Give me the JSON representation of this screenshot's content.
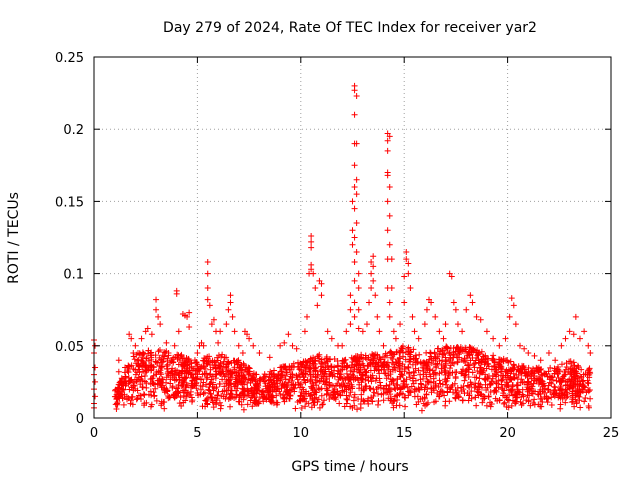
{
  "chart_data": {
    "type": "scatter",
    "title": "Day 279 of 2024, Rate Of TEC Index for receiver yar2",
    "xlabel": "GPS time / hours",
    "ylabel": "ROTI / TECUs",
    "xlim": [
      0,
      25
    ],
    "ylim": [
      0,
      0.25
    ],
    "xticks": [
      0,
      5,
      10,
      15,
      20,
      25
    ],
    "xtick_labels": [
      "0",
      "5",
      "10",
      "15",
      "20",
      "25"
    ],
    "yticks": [
      0,
      0.05,
      0.1,
      0.15,
      0.2,
      0.25
    ],
    "ytick_labels": [
      "0",
      "0.05",
      "0.1",
      "0.15",
      "0.2",
      "0.25"
    ],
    "grid": true,
    "marker": "+",
    "color": "#ff0000",
    "series": [
      {
        "name": "ROTI",
        "points": [
          [
            0.0,
            0.054
          ],
          [
            0.0,
            0.045
          ],
          [
            0.0,
            0.03
          ],
          [
            0.0,
            0.02
          ],
          [
            0.0,
            0.01
          ],
          [
            0.0,
            0.007
          ],
          [
            0.05,
            0.05
          ],
          [
            0.05,
            0.035
          ],
          [
            0.05,
            0.025
          ],
          [
            0.05,
            0.015
          ],
          [
            1.2,
            0.04
          ],
          [
            1.2,
            0.032
          ],
          [
            1.3,
            0.025
          ],
          [
            1.4,
            0.02
          ],
          [
            1.5,
            0.035
          ],
          [
            1.7,
            0.058
          ],
          [
            1.8,
            0.055
          ],
          [
            1.9,
            0.045
          ],
          [
            2.0,
            0.05
          ],
          [
            2.3,
            0.055
          ],
          [
            2.5,
            0.06
          ],
          [
            2.6,
            0.062
          ],
          [
            2.8,
            0.058
          ],
          [
            3.0,
            0.082
          ],
          [
            3.0,
            0.075
          ],
          [
            3.1,
            0.07
          ],
          [
            3.2,
            0.065
          ],
          [
            3.5,
            0.052
          ],
          [
            3.6,
            0.045
          ],
          [
            3.9,
            0.05
          ],
          [
            4.0,
            0.088
          ],
          [
            4.0,
            0.086
          ],
          [
            4.1,
            0.06
          ],
          [
            4.3,
            0.072
          ],
          [
            4.4,
            0.071
          ],
          [
            4.5,
            0.07
          ],
          [
            4.6,
            0.073
          ],
          [
            4.6,
            0.063
          ],
          [
            5.0,
            0.045
          ],
          [
            5.1,
            0.05
          ],
          [
            5.2,
            0.052
          ],
          [
            5.3,
            0.05
          ],
          [
            5.5,
            0.108
          ],
          [
            5.5,
            0.1
          ],
          [
            5.5,
            0.09
          ],
          [
            5.5,
            0.082
          ],
          [
            5.6,
            0.078
          ],
          [
            5.7,
            0.065
          ],
          [
            5.8,
            0.068
          ],
          [
            5.9,
            0.06
          ],
          [
            6.0,
            0.052
          ],
          [
            6.1,
            0.06
          ],
          [
            6.4,
            0.065
          ],
          [
            6.5,
            0.075
          ],
          [
            6.6,
            0.08
          ],
          [
            6.6,
            0.085
          ],
          [
            6.7,
            0.07
          ],
          [
            6.8,
            0.06
          ],
          [
            7.0,
            0.05
          ],
          [
            7.2,
            0.045
          ],
          [
            7.3,
            0.06
          ],
          [
            7.4,
            0.058
          ],
          [
            7.5,
            0.055
          ],
          [
            7.7,
            0.05
          ],
          [
            8.0,
            0.045
          ],
          [
            8.5,
            0.042
          ],
          [
            9.0,
            0.05
          ],
          [
            9.2,
            0.052
          ],
          [
            9.4,
            0.058
          ],
          [
            9.6,
            0.05
          ],
          [
            9.8,
            0.048
          ],
          [
            10.2,
            0.06
          ],
          [
            10.3,
            0.07
          ],
          [
            10.4,
            0.1
          ],
          [
            10.5,
            0.126
          ],
          [
            10.5,
            0.122
          ],
          [
            10.5,
            0.118
          ],
          [
            10.5,
            0.106
          ],
          [
            10.5,
            0.103
          ],
          [
            10.6,
            0.1
          ],
          [
            10.7,
            0.09
          ],
          [
            10.8,
            0.078
          ],
          [
            10.9,
            0.095
          ],
          [
            11.0,
            0.093
          ],
          [
            11.0,
            0.085
          ],
          [
            11.3,
            0.06
          ],
          [
            11.5,
            0.055
          ],
          [
            11.8,
            0.05
          ],
          [
            12.0,
            0.05
          ],
          [
            12.2,
            0.06
          ],
          [
            12.4,
            0.065
          ],
          [
            12.4,
            0.075
          ],
          [
            12.4,
            0.085
          ],
          [
            12.5,
            0.15
          ],
          [
            12.5,
            0.13
          ],
          [
            12.5,
            0.12
          ],
          [
            12.6,
            0.23
          ],
          [
            12.6,
            0.227
          ],
          [
            12.6,
            0.21
          ],
          [
            12.6,
            0.19
          ],
          [
            12.6,
            0.175
          ],
          [
            12.6,
            0.16
          ],
          [
            12.6,
            0.145
          ],
          [
            12.6,
            0.125
          ],
          [
            12.6,
            0.108
          ],
          [
            12.6,
            0.095
          ],
          [
            12.6,
            0.08
          ],
          [
            12.6,
            0.07
          ],
          [
            12.7,
            0.223
          ],
          [
            12.7,
            0.19
          ],
          [
            12.7,
            0.165
          ],
          [
            12.7,
            0.155
          ],
          [
            12.7,
            0.135
          ],
          [
            12.7,
            0.115
          ],
          [
            12.8,
            0.1
          ],
          [
            12.8,
            0.09
          ],
          [
            12.8,
            0.075
          ],
          [
            12.8,
            0.062
          ],
          [
            13.0,
            0.06
          ],
          [
            13.2,
            0.065
          ],
          [
            13.3,
            0.08
          ],
          [
            13.4,
            0.09
          ],
          [
            13.4,
            0.1
          ],
          [
            13.4,
            0.108
          ],
          [
            13.5,
            0.112
          ],
          [
            13.5,
            0.105
          ],
          [
            13.5,
            0.095
          ],
          [
            13.6,
            0.085
          ],
          [
            13.7,
            0.07
          ],
          [
            13.8,
            0.06
          ],
          [
            14.0,
            0.05
          ],
          [
            14.2,
            0.197
          ],
          [
            14.2,
            0.192
          ],
          [
            14.2,
            0.185
          ],
          [
            14.2,
            0.17
          ],
          [
            14.2,
            0.168
          ],
          [
            14.2,
            0.15
          ],
          [
            14.2,
            0.13
          ],
          [
            14.2,
            0.11
          ],
          [
            14.2,
            0.09
          ],
          [
            14.3,
            0.195
          ],
          [
            14.3,
            0.16
          ],
          [
            14.3,
            0.14
          ],
          [
            14.3,
            0.12
          ],
          [
            14.3,
            0.08
          ],
          [
            14.3,
            0.07
          ],
          [
            14.4,
            0.11
          ],
          [
            14.4,
            0.09
          ],
          [
            14.5,
            0.06
          ],
          [
            14.6,
            0.055
          ],
          [
            14.8,
            0.065
          ],
          [
            15.0,
            0.098
          ],
          [
            15.0,
            0.08
          ],
          [
            15.1,
            0.115
          ],
          [
            15.1,
            0.11
          ],
          [
            15.2,
            0.107
          ],
          [
            15.2,
            0.1
          ],
          [
            15.3,
            0.09
          ],
          [
            15.4,
            0.07
          ],
          [
            15.5,
            0.06
          ],
          [
            15.7,
            0.055
          ],
          [
            16.0,
            0.065
          ],
          [
            16.1,
            0.075
          ],
          [
            16.2,
            0.082
          ],
          [
            16.3,
            0.08
          ],
          [
            16.5,
            0.07
          ],
          [
            16.7,
            0.06
          ],
          [
            16.9,
            0.055
          ],
          [
            17.0,
            0.065
          ],
          [
            17.2,
            0.1
          ],
          [
            17.3,
            0.098
          ],
          [
            17.4,
            0.08
          ],
          [
            17.5,
            0.075
          ],
          [
            17.6,
            0.065
          ],
          [
            17.8,
            0.06
          ],
          [
            18.0,
            0.075
          ],
          [
            18.2,
            0.085
          ],
          [
            18.3,
            0.08
          ],
          [
            18.5,
            0.07
          ],
          [
            18.7,
            0.068
          ],
          [
            19.0,
            0.06
          ],
          [
            19.3,
            0.055
          ],
          [
            19.6,
            0.05
          ],
          [
            19.9,
            0.055
          ],
          [
            20.1,
            0.07
          ],
          [
            20.2,
            0.083
          ],
          [
            20.3,
            0.078
          ],
          [
            20.4,
            0.065
          ],
          [
            20.6,
            0.05
          ],
          [
            20.8,
            0.048
          ],
          [
            21.0,
            0.045
          ],
          [
            21.3,
            0.043
          ],
          [
            21.6,
            0.04
          ],
          [
            22.0,
            0.045
          ],
          [
            22.3,
            0.04
          ],
          [
            22.6,
            0.05
          ],
          [
            22.8,
            0.055
          ],
          [
            23.0,
            0.06
          ],
          [
            23.2,
            0.058
          ],
          [
            23.3,
            0.07
          ],
          [
            23.5,
            0.055
          ],
          [
            23.7,
            0.06
          ],
          [
            23.9,
            0.05
          ],
          [
            24.0,
            0.045
          ]
        ],
        "band": {
          "description": "dense cluster of low ROTI values across the day",
          "x": [
            1.0,
            24.0
          ],
          "baseline_min": 0.005,
          "profile_x": [
            1.0,
            2.0,
            3.0,
            4.0,
            5.0,
            6.0,
            7.0,
            8.0,
            9.0,
            10.0,
            11.0,
            12.0,
            13.0,
            14.0,
            15.0,
            16.0,
            17.0,
            18.0,
            19.0,
            20.0,
            21.0,
            22.0,
            23.0,
            24.0
          ],
          "profile_max": [
            0.02,
            0.045,
            0.048,
            0.045,
            0.04,
            0.045,
            0.04,
            0.03,
            0.035,
            0.04,
            0.045,
            0.04,
            0.045,
            0.045,
            0.05,
            0.045,
            0.05,
            0.05,
            0.045,
            0.04,
            0.035,
            0.035,
            0.04,
            0.035
          ]
        }
      }
    ]
  }
}
